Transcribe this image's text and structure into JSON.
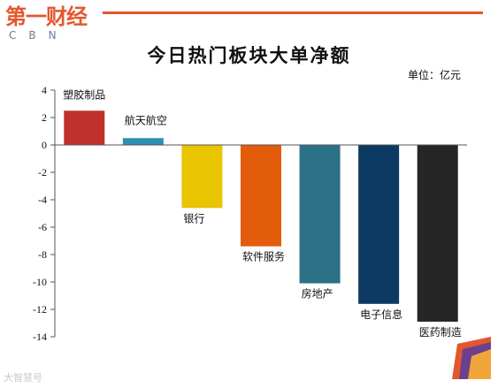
{
  "logo": {
    "cn": "第一财经",
    "en": "CBN"
  },
  "watermark": "大智慧号",
  "chart_data": {
    "type": "bar",
    "title": "今日热门板块大单净额",
    "unit_label": "单位：亿元",
    "categories": [
      "塑胶制品",
      "航天航空",
      "银行",
      "软件服务",
      "房地产",
      "电子信息",
      "医药制造"
    ],
    "values": [
      2.5,
      0.5,
      -4.6,
      -7.4,
      -10.1,
      -11.6,
      -12.9
    ],
    "colors": [
      "#c0312b",
      "#2e8fb3",
      "#e9c400",
      "#e35c0b",
      "#2d7187",
      "#0c3a63",
      "#262626"
    ],
    "ylim": [
      -14,
      4
    ],
    "yticks": [
      4,
      2,
      0,
      -2,
      -4,
      -6,
      -8,
      -10,
      -12,
      -14
    ],
    "xlabel": "",
    "ylabel": "",
    "legend": "none",
    "grid": false
  }
}
